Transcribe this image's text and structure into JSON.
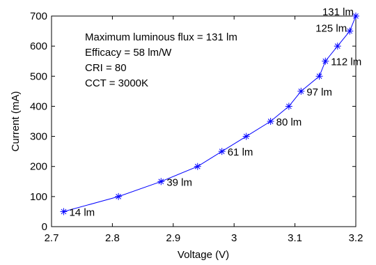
{
  "chart_data": {
    "type": "line",
    "title": "",
    "xlabel": "Voltage (V)",
    "ylabel": "Current (mA)",
    "xlim": [
      2.7,
      3.2
    ],
    "ylim": [
      0,
      700
    ],
    "x_ticks": [
      "2.7",
      "2.8",
      "2.9",
      "3",
      "3.1",
      "3.2"
    ],
    "y_ticks": [
      "0",
      "100",
      "200",
      "300",
      "400",
      "500",
      "600",
      "700"
    ],
    "grid": false,
    "marker": "asterisk",
    "line_color": "#0000ff",
    "series": [
      {
        "x": [
          2.72,
          2.81,
          2.88,
          2.94,
          2.98,
          3.02,
          3.06,
          3.09,
          3.11,
          3.14,
          3.15,
          3.17,
          3.19,
          3.2
        ],
        "y": [
          50,
          100,
          150,
          200,
          250,
          300,
          350,
          400,
          450,
          500,
          550,
          600,
          650,
          700
        ]
      }
    ],
    "point_labels": [
      {
        "text": "14 lm",
        "x": 2.72,
        "y": 50
      },
      {
        "text": "39 lm",
        "x": 2.88,
        "y": 150
      },
      {
        "text": "61 lm",
        "x": 2.98,
        "y": 250
      },
      {
        "text": "80 lm",
        "x": 3.06,
        "y": 350
      },
      {
        "text": "97 lm",
        "x": 3.11,
        "y": 450
      },
      {
        "text": "112 lm",
        "x": 3.15,
        "y": 550
      },
      {
        "text": "125 lm",
        "x": 3.19,
        "y": 650
      },
      {
        "text": "131 lm",
        "x": 3.2,
        "y": 700
      }
    ],
    "annotations": [
      "Maximum luminous flux = 131 lm",
      "Efficacy = 58 lm/W",
      "CRI = 80",
      "CCT = 3000K"
    ]
  }
}
